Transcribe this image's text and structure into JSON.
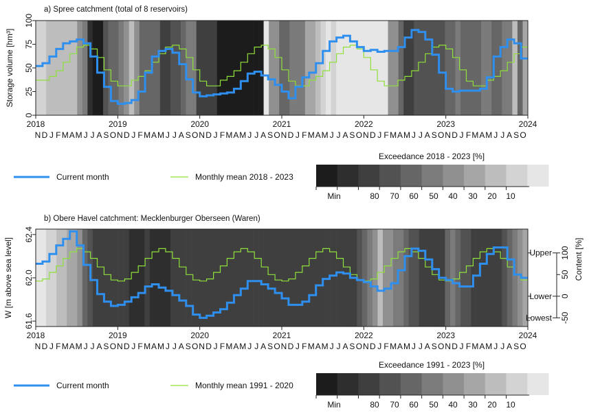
{
  "colors": {
    "current": "#2f8fef",
    "mean": "#8fe03a",
    "scale": [
      "#1c1c1c",
      "#2e2e2e",
      "#3f3f3f",
      "#525252",
      "#666666",
      "#7b7b7b",
      "#909090",
      "#a6a6a6",
      "#bdbdbd",
      "#d3d3d3",
      "#e6e6e6"
    ]
  },
  "chart_data": [
    {
      "type": "line",
      "title": "a) Spree catchment (total of 8 reservoirs)",
      "ylabel": "Storage volume [hm³]",
      "ylim": [
        0,
        100
      ],
      "yticks": [
        "0",
        "25",
        "50",
        "75",
        "100"
      ],
      "ytick_values": [
        0,
        25,
        50,
        75,
        100
      ],
      "xlim": [
        "2017-11",
        "2023-10"
      ],
      "year_labels": [
        "2018",
        "2019",
        "2020",
        "2021",
        "2022",
        "2023",
        "2024"
      ],
      "month_letters": "NDJFMAMJJASONDJFMAMJJASONDJFMAMJJASONDJFMAMJJASONDJFMAMJJASONDJFMAMJJASO",
      "background_exceedance_class": [
        9,
        9,
        8,
        8,
        8,
        8,
        8,
        8,
        6,
        5,
        1,
        0,
        0,
        3,
        4,
        4,
        5,
        6,
        8,
        6,
        4,
        4,
        4,
        4,
        2,
        2,
        3,
        3,
        4,
        5,
        5,
        2,
        2,
        2,
        2,
        0,
        0,
        0,
        0,
        0,
        0,
        0,
        0,
        0,
        10,
        6,
        6,
        4,
        4,
        5,
        5,
        5,
        7,
        7,
        8,
        9,
        10,
        9,
        10,
        10,
        10,
        10,
        10,
        10,
        10,
        10,
        10,
        10,
        6,
        6,
        4,
        2,
        2,
        3,
        3,
        3,
        3,
        3,
        3,
        4,
        4,
        5,
        4,
        4,
        4,
        4,
        5,
        5,
        4,
        4,
        5,
        5,
        8,
        4,
        7
      ],
      "background_note": "class per month",
      "series": [
        {
          "name": "Current month",
          "x": [
            "2017-11",
            "2017-12",
            "2018-01",
            "2018-02",
            "2018-03",
            "2018-04",
            "2018-05",
            "2018-06",
            "2018-07",
            "2018-08",
            "2018-09",
            "2018-10",
            "2018-11",
            "2018-12",
            "2019-01",
            "2019-02",
            "2019-03",
            "2019-04",
            "2019-05",
            "2019-06",
            "2019-07",
            "2019-08",
            "2019-09",
            "2019-10",
            "2019-11",
            "2019-12",
            "2020-01",
            "2020-02",
            "2020-03",
            "2020-04",
            "2020-05",
            "2020-06",
            "2020-07",
            "2020-08",
            "2020-09",
            "2020-10",
            "2020-11",
            "2020-12",
            "2021-01",
            "2021-02",
            "2021-03",
            "2021-04",
            "2021-05",
            "2021-06",
            "2021-07",
            "2021-08",
            "2021-09",
            "2021-10",
            "2021-11",
            "2021-12",
            "2022-01",
            "2022-02",
            "2022-03",
            "2022-04",
            "2022-05",
            "2022-06",
            "2022-07",
            "2022-08",
            "2022-09",
            "2022-10",
            "2022-11",
            "2022-12",
            "2023-01",
            "2023-02",
            "2023-03",
            "2023-04",
            "2023-05",
            "2023-06",
            "2023-07",
            "2023-08",
            "2023-09",
            "2023-10"
          ],
          "values": [
            52,
            55,
            62,
            70,
            76,
            78,
            80,
            76,
            62,
            45,
            30,
            15,
            12,
            13,
            16,
            25,
            45,
            62,
            68,
            70,
            66,
            54,
            38,
            24,
            20,
            21,
            22,
            23,
            24,
            28,
            36,
            44,
            46,
            42,
            38,
            32,
            25,
            18,
            30,
            40,
            45,
            55,
            68,
            78,
            82,
            84,
            78,
            72,
            68,
            69,
            67,
            68,
            68,
            72,
            82,
            90,
            88,
            80,
            64,
            45,
            28,
            25,
            26,
            26,
            26,
            28,
            40,
            62,
            72,
            80,
            76,
            60
          ]
        },
        {
          "name": "Monthly mean 2018 - 2023",
          "x": [
            "2017-11",
            "2017-12",
            "2018-01",
            "2018-02",
            "2018-03",
            "2018-04",
            "2018-05",
            "2018-06",
            "2018-07",
            "2018-08",
            "2018-09",
            "2018-10",
            "2018-11",
            "2018-12",
            "2019-01",
            "2019-02",
            "2019-03",
            "2019-04",
            "2019-05",
            "2019-06",
            "2019-07",
            "2019-08",
            "2019-09",
            "2019-10",
            "2019-11",
            "2019-12",
            "2020-01",
            "2020-02",
            "2020-03",
            "2020-04",
            "2020-05",
            "2020-06",
            "2020-07",
            "2020-08",
            "2020-09",
            "2020-10",
            "2020-11",
            "2020-12",
            "2021-01",
            "2021-02",
            "2021-03",
            "2021-04",
            "2021-05",
            "2021-06",
            "2021-07",
            "2021-08",
            "2021-09",
            "2021-10",
            "2021-11",
            "2021-12",
            "2022-01",
            "2022-02",
            "2022-03",
            "2022-04",
            "2022-05",
            "2022-06",
            "2022-07",
            "2022-08",
            "2022-09",
            "2022-10",
            "2022-11",
            "2022-12",
            "2023-01",
            "2023-02",
            "2023-03",
            "2023-04",
            "2023-05",
            "2023-06",
            "2023-07",
            "2023-08",
            "2023-09",
            "2023-10"
          ],
          "values": [
            37,
            37,
            41,
            47,
            56,
            65,
            72,
            74,
            70,
            61,
            48,
            36,
            31,
            31,
            37,
            41,
            47,
            56,
            65,
            72,
            74,
            70,
            61,
            48,
            36,
            31,
            31,
            37,
            41,
            47,
            56,
            65,
            72,
            74,
            70,
            61,
            48,
            36,
            31,
            31,
            37,
            41,
            47,
            56,
            65,
            72,
            74,
            70,
            61,
            48,
            36,
            31,
            31,
            37,
            41,
            47,
            56,
            65,
            72,
            74,
            70,
            61,
            48,
            36,
            31,
            31,
            37,
            41,
            47,
            56,
            65,
            72
          ]
        }
      ],
      "legend": {
        "current": "Current month",
        "mean": "Monthly mean 2018 - 2023",
        "scale_title": "Exceedance  2018 - 2023 [%]",
        "scale_labels": [
          "Min",
          "80",
          "70",
          "60",
          "50",
          "40",
          "30",
          "20",
          "10"
        ]
      }
    },
    {
      "type": "line",
      "title": "b) Obere Havel catchment: Mecklenburger Oberseen (Waren)",
      "ylabel": "W [m above sea level]",
      "ylim": [
        61.55,
        62.45
      ],
      "yticks": [
        "61.6",
        "62.0",
        "62.4"
      ],
      "ytick_values": [
        61.6,
        62.0,
        62.4
      ],
      "right_ylabel": "Content [%]",
      "right_ticks": [
        "-50",
        "0",
        "50",
        "100"
      ],
      "right_tick_values": [
        61.63,
        61.83,
        62.03,
        62.23
      ],
      "right_markers": [
        {
          "label": "Upper",
          "value": 62.23
        },
        {
          "label": "Lower",
          "value": 61.83
        },
        {
          "label": "Lowest",
          "value": 61.63
        }
      ],
      "xlim": [
        "2017-11",
        "2023-10"
      ],
      "year_labels": [
        "2018",
        "2019",
        "2020",
        "2021",
        "2022",
        "2023",
        "2024"
      ],
      "month_letters": "NDJFMAMJJASONDJFMAMJJASONDJFMAMJJASONDJFMAMJJASONDJFMAMJJASONDJFMAMJJASO",
      "background_exceedance_class": [
        10,
        10,
        9,
        9,
        8,
        8,
        7,
        7,
        6,
        4,
        3,
        2,
        2,
        2,
        2,
        2,
        2,
        2,
        1,
        1,
        1,
        2,
        1,
        1,
        1,
        1,
        2,
        2,
        2,
        2,
        2,
        2,
        2,
        2,
        2,
        2,
        2,
        2,
        2,
        2,
        2,
        2,
        2,
        2,
        2,
        2,
        2,
        2,
        2,
        2,
        2,
        2,
        2,
        2,
        2,
        2,
        2,
        2,
        2,
        2,
        2,
        2,
        3,
        4,
        5,
        6,
        8,
        6,
        6,
        5,
        5,
        4,
        3,
        3,
        2,
        2,
        2,
        2,
        2,
        4,
        5,
        4,
        3,
        3,
        2,
        2,
        2,
        2,
        2,
        2,
        3,
        4,
        5,
        6,
        7
      ],
      "series": [
        {
          "name": "Current month",
          "x": [
            "2017-11",
            "2017-12",
            "2018-01",
            "2018-02",
            "2018-03",
            "2018-04",
            "2018-05",
            "2018-06",
            "2018-07",
            "2018-08",
            "2018-09",
            "2018-10",
            "2018-11",
            "2018-12",
            "2019-01",
            "2019-02",
            "2019-03",
            "2019-04",
            "2019-05",
            "2019-06",
            "2019-07",
            "2019-08",
            "2019-09",
            "2019-10",
            "2019-11",
            "2019-12",
            "2020-01",
            "2020-02",
            "2020-03",
            "2020-04",
            "2020-05",
            "2020-06",
            "2020-07",
            "2020-08",
            "2020-09",
            "2020-10",
            "2020-11",
            "2020-12",
            "2021-01",
            "2021-02",
            "2021-03",
            "2021-04",
            "2021-05",
            "2021-06",
            "2021-07",
            "2021-08",
            "2021-09",
            "2021-10",
            "2021-11",
            "2021-12",
            "2022-01",
            "2022-02",
            "2022-03",
            "2022-04",
            "2022-05",
            "2022-06",
            "2022-07",
            "2022-08",
            "2022-09",
            "2022-10",
            "2022-11",
            "2022-12",
            "2023-01",
            "2023-02",
            "2023-03",
            "2023-04",
            "2023-05",
            "2023-06",
            "2023-07",
            "2023-08",
            "2023-09",
            "2023-10"
          ],
          "values": [
            62.13,
            62.15,
            62.22,
            62.3,
            62.36,
            62.43,
            62.3,
            62.12,
            61.98,
            61.85,
            61.78,
            61.74,
            61.75,
            61.78,
            61.82,
            61.86,
            61.92,
            61.94,
            61.91,
            61.88,
            61.84,
            61.79,
            61.74,
            61.66,
            61.63,
            61.65,
            61.68,
            61.71,
            61.77,
            61.84,
            61.9,
            61.97,
            61.97,
            61.94,
            61.9,
            61.86,
            61.81,
            61.75,
            61.75,
            61.78,
            61.84,
            61.93,
            61.99,
            62.02,
            62.05,
            62.04,
            62.0,
            61.98,
            61.96,
            61.92,
            61.88,
            61.9,
            61.95,
            62.07,
            62.2,
            62.27,
            62.25,
            62.17,
            62.08,
            62.0,
            61.98,
            61.95,
            61.92,
            61.92,
            62.02,
            62.13,
            62.22,
            62.28,
            62.28,
            62.17,
            62.03,
            62.0
          ]
        },
        {
          "name": "Monthly mean 1991 - 2020",
          "x": [
            "2017-11",
            "2017-12",
            "2018-01",
            "2018-02",
            "2018-03",
            "2018-04",
            "2018-05",
            "2018-06",
            "2018-07",
            "2018-08",
            "2018-09",
            "2018-10",
            "2018-11",
            "2018-12",
            "2019-01",
            "2019-02",
            "2019-03",
            "2019-04",
            "2019-05",
            "2019-06",
            "2019-07",
            "2019-08",
            "2019-09",
            "2019-10",
            "2019-11",
            "2019-12",
            "2020-01",
            "2020-02",
            "2020-03",
            "2020-04",
            "2020-05",
            "2020-06",
            "2020-07",
            "2020-08",
            "2020-09",
            "2020-10",
            "2020-11",
            "2020-12",
            "2021-01",
            "2021-02",
            "2021-03",
            "2021-04",
            "2021-05",
            "2021-06",
            "2021-07",
            "2021-08",
            "2021-09",
            "2021-10",
            "2021-11",
            "2021-12",
            "2022-01",
            "2022-02",
            "2022-03",
            "2022-04",
            "2022-05",
            "2022-06",
            "2022-07",
            "2022-08",
            "2022-09",
            "2022-10",
            "2022-11",
            "2022-12",
            "2023-01",
            "2023-02",
            "2023-03",
            "2023-04",
            "2023-05",
            "2023-06",
            "2023-07",
            "2023-08",
            "2023-09",
            "2023-10"
          ],
          "values": [
            61.97,
            61.99,
            62.05,
            62.11,
            62.18,
            62.24,
            62.27,
            62.24,
            62.18,
            62.1,
            62.03,
            61.98,
            61.97,
            61.99,
            62.05,
            62.11,
            62.18,
            62.24,
            62.27,
            62.24,
            62.18,
            62.1,
            62.03,
            61.98,
            61.97,
            61.99,
            62.05,
            62.11,
            62.18,
            62.24,
            62.27,
            62.24,
            62.18,
            62.1,
            62.03,
            61.98,
            61.97,
            61.99,
            62.05,
            62.11,
            62.18,
            62.24,
            62.27,
            62.24,
            62.18,
            62.1,
            62.03,
            61.98,
            61.97,
            61.99,
            62.05,
            62.11,
            62.18,
            62.24,
            62.27,
            62.24,
            62.18,
            62.1,
            62.03,
            61.98,
            61.97,
            61.99,
            62.05,
            62.11,
            62.18,
            62.24,
            62.27,
            62.24,
            62.18,
            62.1,
            62.03,
            61.98
          ]
        }
      ],
      "legend": {
        "current": "Current month",
        "mean": "Monthly mean 1991 - 2020",
        "scale_title": "Exceedance  1991 - 2023 [%]",
        "scale_labels": [
          "Min",
          "80",
          "70",
          "60",
          "50",
          "40",
          "30",
          "20",
          "10"
        ]
      }
    }
  ]
}
